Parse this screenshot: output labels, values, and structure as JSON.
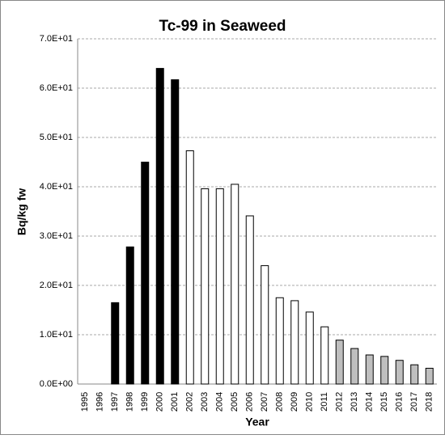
{
  "chart_data": {
    "type": "bar",
    "title": "Tc-99 in Seaweed",
    "x_label": "Year",
    "y_label": "Bq/kg fw",
    "categories": [
      "1995",
      "1996",
      "1997",
      "1998",
      "1999",
      "2000",
      "2001",
      "2002",
      "2003",
      "2004",
      "2005",
      "2006",
      "2007",
      "2008",
      "2009",
      "2010",
      "2011",
      "2012",
      "2013",
      "2014",
      "2015",
      "2016",
      "2017",
      "2018"
    ],
    "values": [
      null,
      null,
      16.5,
      27.8,
      45.0,
      64.0,
      61.7,
      47.3,
      39.6,
      39.6,
      40.5,
      34.1,
      24.0,
      17.5,
      16.9,
      14.6,
      11.6,
      8.9,
      7.2,
      5.9,
      5.6,
      4.8,
      3.9,
      3.2
    ],
    "colors": [
      null,
      null,
      "#000000",
      "#000000",
      "#000000",
      "#000000",
      "#000000",
      "#ffffff",
      "#ffffff",
      "#ffffff",
      "#ffffff",
      "#ffffff",
      "#ffffff",
      "#ffffff",
      "#ffffff",
      "#ffffff",
      "#ffffff",
      "#bfbfbf",
      "#bfbfbf",
      "#bfbfbf",
      "#bfbfbf",
      "#bfbfbf",
      "#bfbfbf",
      "#bfbfbf"
    ],
    "ylim": [
      0,
      70
    ],
    "yticks": [
      {
        "value": 0,
        "label": "0.0E+00"
      },
      {
        "value": 10,
        "label": "1.0E+01"
      },
      {
        "value": 20,
        "label": "2.0E+01"
      },
      {
        "value": 30,
        "label": "3.0E+01"
      },
      {
        "value": 40,
        "label": "4.0E+01"
      },
      {
        "value": 50,
        "label": "5.0E+01"
      },
      {
        "value": 60,
        "label": "6.0E+01"
      },
      {
        "value": 70,
        "label": "7.0E+01"
      }
    ],
    "grid": true
  }
}
